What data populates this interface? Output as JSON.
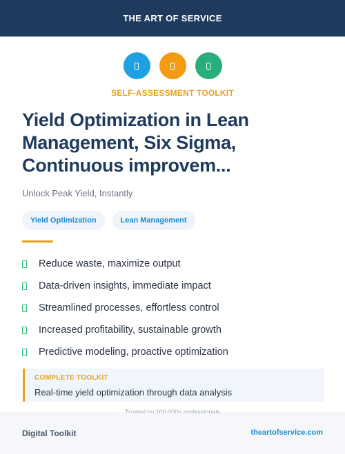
{
  "header": {
    "brand": "THE ART OF SERVICE"
  },
  "icons": [
    {
      "name": "document-icon",
      "color": "#1da1e2"
    },
    {
      "name": "document-icon",
      "color": "#f39c12"
    },
    {
      "name": "document-icon",
      "color": "#27ae7a"
    }
  ],
  "kicker": "SELF-ASSESSMENT TOOLKIT",
  "title": {
    "line1": "Yield Optimization in Lean",
    "line2": "Management, Six Sigma,",
    "line3": "Continuous improvem..."
  },
  "subtitle": "Unlock Peak Yield, Instantly",
  "tags": [
    "Yield Optimization",
    "Lean Management"
  ],
  "benefits": [
    "Reduce waste, maximize output",
    "Data-driven insights, immediate impact",
    "Streamlined processes, effortless control",
    "Increased profitability, sustainable growth",
    "Predictive modeling, proactive optimization"
  ],
  "callout": {
    "label": "COMPLETE TOOLKIT",
    "text": "Real-time yield optimization through data analysis"
  },
  "trusted": "Trusted by 100,000+ professionals",
  "footer": {
    "left": "Digital Toolkit",
    "right": "theartofservice.com"
  }
}
